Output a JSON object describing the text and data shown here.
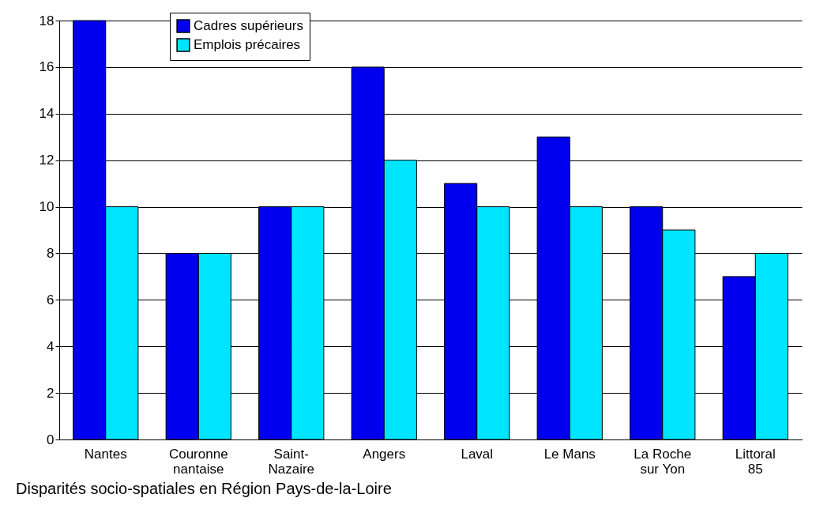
{
  "chart_data": {
    "type": "bar",
    "title": "Disparités socio-spatiales en Région Pays-de-la-Loire",
    "categories": [
      "Nantes",
      "Couronne nantaise",
      "Saint-Nazaire",
      "Angers",
      "Laval",
      "Le Mans",
      "La Roche sur Yon",
      "Littoral 85"
    ],
    "series": [
      {
        "name": "Cadres supérieurs",
        "color": "#0000ee",
        "values": [
          18,
          8,
          10,
          16,
          11,
          13,
          10,
          7
        ]
      },
      {
        "name": "Emplois précaires",
        "color": "#00e5ff",
        "values": [
          10,
          8,
          10,
          12,
          10,
          10,
          9,
          8
        ]
      }
    ],
    "ylim": [
      0,
      18
    ],
    "yticks": [
      0,
      2,
      4,
      6,
      8,
      10,
      12,
      14,
      16,
      18
    ],
    "grid": "y",
    "legend": "top left"
  }
}
